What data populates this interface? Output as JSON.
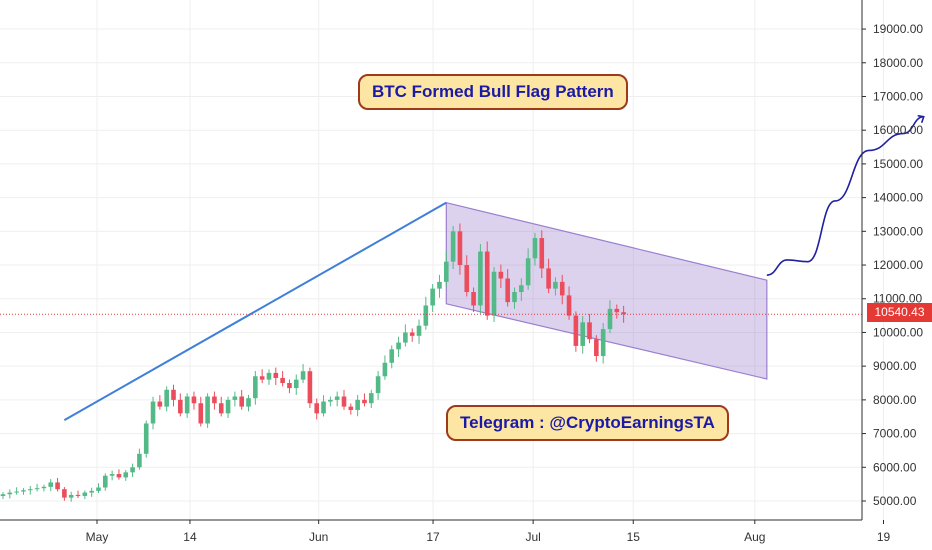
{
  "chart_data": {
    "type": "candlestick",
    "title": "BTC Formed Bull Flag Pattern",
    "annotation": "Telegram : @CryptoEarningsTA",
    "last_price": "10540.43",
    "y_ticks": [
      5000,
      6000,
      7000,
      8000,
      9000,
      10000,
      11000,
      12000,
      13000,
      14000,
      15000,
      16000,
      17000,
      18000,
      19000
    ],
    "y_tick_labels": [
      "5000.00",
      "6000.00",
      "7000.00",
      "8000.00",
      "9000.00",
      "10000.00",
      "11000.00",
      "12000.00",
      "13000.00",
      "14000.00",
      "15000.00",
      "16000.00",
      "17000.00",
      "18000.00",
      "19000.00"
    ],
    "ylim": [
      4100,
      19800
    ],
    "x_ticks": [
      {
        "label": "May",
        "day": 0
      },
      {
        "label": "14",
        "day": 13
      },
      {
        "label": "Jun",
        "day": 31
      },
      {
        "label": "17",
        "day": 47
      },
      {
        "label": "Jul",
        "day": 61
      },
      {
        "label": "15",
        "day": 75
      },
      {
        "label": "Aug",
        "day": 92
      },
      {
        "label": "19",
        "day": 110
      }
    ],
    "closes": [
      5200,
      5250,
      5280,
      5320,
      5350,
      5380,
      5420,
      5550,
      5350,
      5100,
      5180,
      5150,
      5250,
      5300,
      5400,
      5750,
      5800,
      5700,
      5850,
      6000,
      6400,
      7300,
      7950,
      7800,
      8300,
      8000,
      7600,
      8100,
      7900,
      7300,
      8100,
      7900,
      7600,
      8000,
      8100,
      7800,
      8050,
      8700,
      8600,
      8800,
      8650,
      8500,
      8350,
      8600,
      8850,
      7900,
      7600,
      7950,
      8000,
      8100,
      7800,
      7700,
      8000,
      7900,
      8200,
      8700,
      9100,
      9500,
      9700,
      10000,
      9900,
      10200,
      10800,
      11300,
      11500,
      12100,
      13000,
      12000,
      11200,
      10800,
      12400,
      10500,
      11800,
      11600,
      10900,
      11200,
      11400,
      12200,
      12800,
      11900,
      11300,
      11500,
      11100,
      10500,
      9600,
      10300,
      9800,
      9300,
      10100,
      10700,
      10600,
      10540
    ],
    "flag_channel": {
      "upper": [
        [
          -1,
          13850
        ],
        [
          46,
          11550
        ]
      ],
      "lower": [
        [
          -1,
          10850
        ],
        [
          46,
          8620
        ]
      ]
    },
    "pole": [
      [
        -57,
        7400
      ],
      [
        -1,
        13850
      ]
    ],
    "projection": [
      [
        46,
        11700
      ],
      [
        49,
        12150
      ],
      [
        52,
        12100
      ],
      [
        56,
        13900
      ],
      [
        61,
        15400
      ],
      [
        66,
        15900
      ],
      [
        69,
        16400
      ]
    ],
    "colors": {
      "up": "#53b987",
      "down": "#eb4d5c",
      "pole": "#3d7fd9",
      "channel": "#9b7fce",
      "projection": "#2020a0",
      "price_line": "#e53935"
    }
  }
}
